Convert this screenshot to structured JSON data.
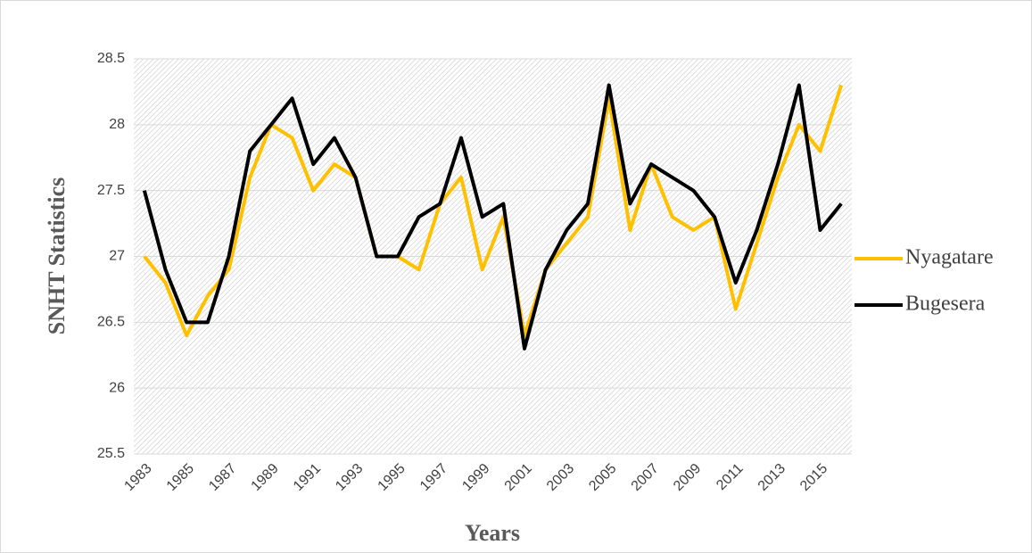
{
  "chart_data": {
    "type": "line",
    "x_label": "Years",
    "y_label": "SNHT Statistics",
    "categories": [
      "1983",
      null,
      "1985",
      null,
      "1987",
      null,
      "1989",
      null,
      "1991",
      null,
      "1993",
      null,
      "1995",
      null,
      "1997",
      null,
      "1999",
      null,
      "2001",
      null,
      "2003",
      null,
      "2005",
      null,
      "2007",
      null,
      "2009",
      null,
      "2011",
      null,
      "2013",
      null,
      "2015",
      null
    ],
    "series": [
      {
        "name": "Nyagatare",
        "color": "#ffc000",
        "values": [
          27.0,
          26.8,
          26.4,
          26.7,
          26.9,
          27.6,
          28.0,
          27.9,
          27.5,
          27.7,
          27.6,
          27.0,
          27.0,
          26.9,
          27.4,
          27.6,
          26.9,
          27.3,
          26.4,
          26.9,
          27.1,
          27.3,
          28.2,
          27.2,
          27.7,
          27.3,
          27.2,
          27.3,
          26.6,
          27.1,
          27.6,
          28.0,
          27.8,
          28.3
        ]
      },
      {
        "name": "Bugesera",
        "color": "#000000",
        "values": [
          27.5,
          26.9,
          26.5,
          26.5,
          27.0,
          27.8,
          28.0,
          28.2,
          27.7,
          27.9,
          27.6,
          27.0,
          27.0,
          27.3,
          27.4,
          27.9,
          27.3,
          27.4,
          26.3,
          26.9,
          27.2,
          27.4,
          28.3,
          27.4,
          27.7,
          27.6,
          27.5,
          27.3,
          26.8,
          27.2,
          27.7,
          28.3,
          27.2,
          27.4
        ]
      }
    ],
    "ylim": [
      25.5,
      28.5
    ],
    "yticks": [
      25.5,
      26,
      26.5,
      27,
      27.5,
      28,
      28.5
    ],
    "grid": true,
    "legend": "right"
  }
}
